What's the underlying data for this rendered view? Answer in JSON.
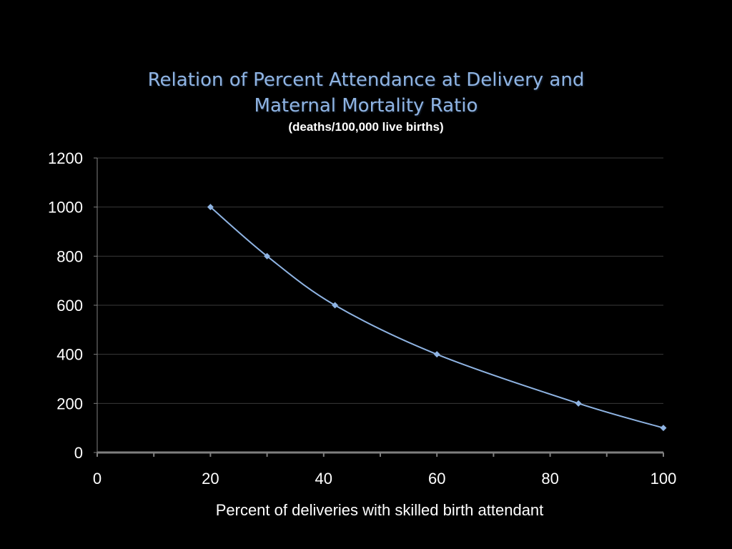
{
  "chart_data": {
    "type": "scatter",
    "title_lines": [
      "Relation of Percent Attendance at Delivery and",
      "Maternal Mortality Ratio"
    ],
    "subtitle": "(deaths/100,000 live births)",
    "xlabel": "Percent of deliveries with skilled birth attendant",
    "ylabel": "",
    "xlim": [
      0,
      100
    ],
    "ylim": [
      0,
      1200
    ],
    "x_ticks": [
      0,
      20,
      40,
      60,
      80,
      100
    ],
    "x_minor_step": 10,
    "y_ticks": [
      0,
      200,
      400,
      600,
      800,
      1000,
      1200
    ],
    "grid": "horizontal",
    "legend": "none",
    "line_style": "smooth",
    "series": [
      {
        "x": [
          20,
          30,
          42,
          60,
          85,
          100
        ],
        "y": [
          1000,
          800,
          600,
          400,
          200,
          100
        ],
        "color": "#8fb4e3",
        "marker": "diamond"
      }
    ]
  },
  "colors": {
    "background": "#000000",
    "title": "#8fb4e3",
    "gridline": "#3a3a3a",
    "axis": "#7f7f7f",
    "text": "#ffffff"
  }
}
